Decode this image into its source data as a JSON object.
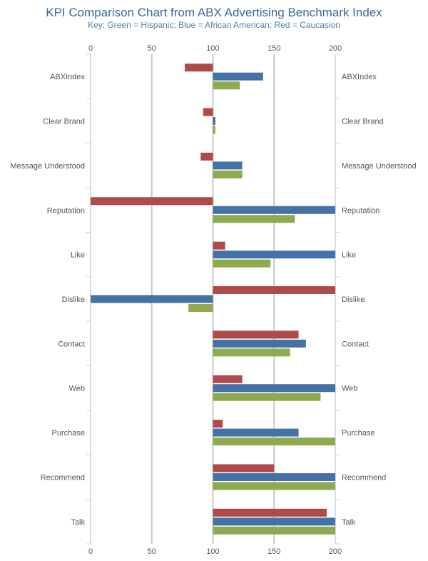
{
  "chart_data": {
    "type": "bar",
    "orientation": "horizontal",
    "title": "KPI Comparison Chart from ABX Advertising Benchmark Index",
    "subtitle": "Key: Green = Hispanic; Blue = African American; Red = Caucasion",
    "baseline": 100,
    "xlim": [
      0,
      200
    ],
    "xticks": [
      0,
      50,
      100,
      150,
      200
    ],
    "categories": [
      "ABXIndex",
      "Clear Brand",
      "Message Understood",
      "Reputation",
      "Like",
      "Dislike",
      "Contact",
      "Web",
      "Purchase",
      "Recommend",
      "Talk"
    ],
    "series": [
      {
        "color": "#b04a4a",
        "values": [
          77,
          92,
          90,
          0,
          110,
          200,
          170,
          124,
          108,
          150,
          193
        ]
      },
      {
        "color": "#4472a8",
        "values": [
          141,
          102,
          124,
          200,
          200,
          0,
          176,
          200,
          170,
          200,
          200
        ]
      },
      {
        "color": "#8eaa4e",
        "values": [
          122,
          102,
          124,
          167,
          147,
          80,
          163,
          188,
          200,
          200,
          200
        ]
      }
    ],
    "grid": true,
    "legend": "none"
  }
}
